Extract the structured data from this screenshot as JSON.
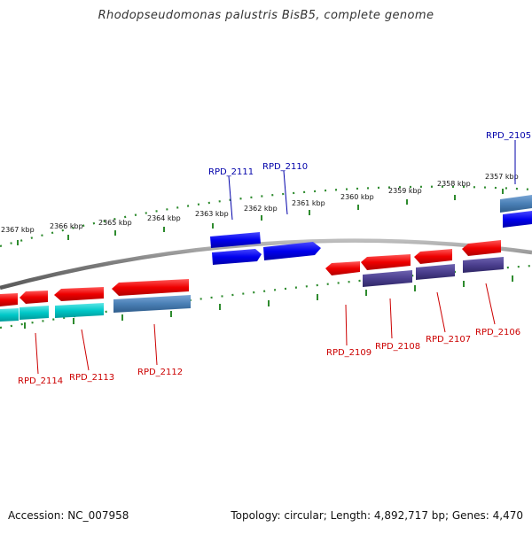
{
  "title": "Rhodopseudomonas palustris BisB5, complete genome",
  "footer": {
    "accession": "Accession: NC_007958",
    "summary": "Topology: circular; Length: 4,892,717 bp; Genes: 4,470"
  },
  "colors": {
    "backbone": "#8a8a8a",
    "tick": "#2e8b2e",
    "forward_gene": "#0000ee",
    "reverse_gene": "#ee0000",
    "forward_label": "#0000aa",
    "reverse_label": "#cc0000",
    "steelblue_feature": "#4a7fb5",
    "cyan_feature": "#00c8c8",
    "slateblue_feature": "#4b3f8f"
  },
  "ticks": [
    {
      "label": "2367 kbp"
    },
    {
      "label": "2366 kbp"
    },
    {
      "label": "2365 kbp"
    },
    {
      "label": "2364 kbp"
    },
    {
      "label": "2363 kbp"
    },
    {
      "label": "2362 kbp"
    },
    {
      "label": "2361 kbp"
    },
    {
      "label": "2360 kbp"
    },
    {
      "label": "2359 kbp"
    },
    {
      "label": "2358 kbp"
    },
    {
      "label": "2357 kbp"
    }
  ],
  "gene_labels": [
    {
      "id": "RPD_2105",
      "text": "RPD_2105",
      "strand": "forward"
    },
    {
      "id": "RPD_2106",
      "text": "RPD_2106",
      "strand": "reverse"
    },
    {
      "id": "RPD_2107",
      "text": "RPD_2107",
      "strand": "reverse"
    },
    {
      "id": "RPD_2108",
      "text": "RPD_2108",
      "strand": "reverse"
    },
    {
      "id": "RPD_2109",
      "text": "RPD_2109",
      "strand": "reverse"
    },
    {
      "id": "RPD_2110",
      "text": "RPD_2110",
      "strand": "forward"
    },
    {
      "id": "RPD_2111",
      "text": "RPD_2111",
      "strand": "forward"
    },
    {
      "id": "RPD_2112",
      "text": "RPD_2112",
      "strand": "reverse"
    },
    {
      "id": "RPD_2113",
      "text": "RPD_2113",
      "strand": "reverse"
    },
    {
      "id": "RPD_2114",
      "text": "RPD_2114",
      "strand": "reverse"
    }
  ]
}
